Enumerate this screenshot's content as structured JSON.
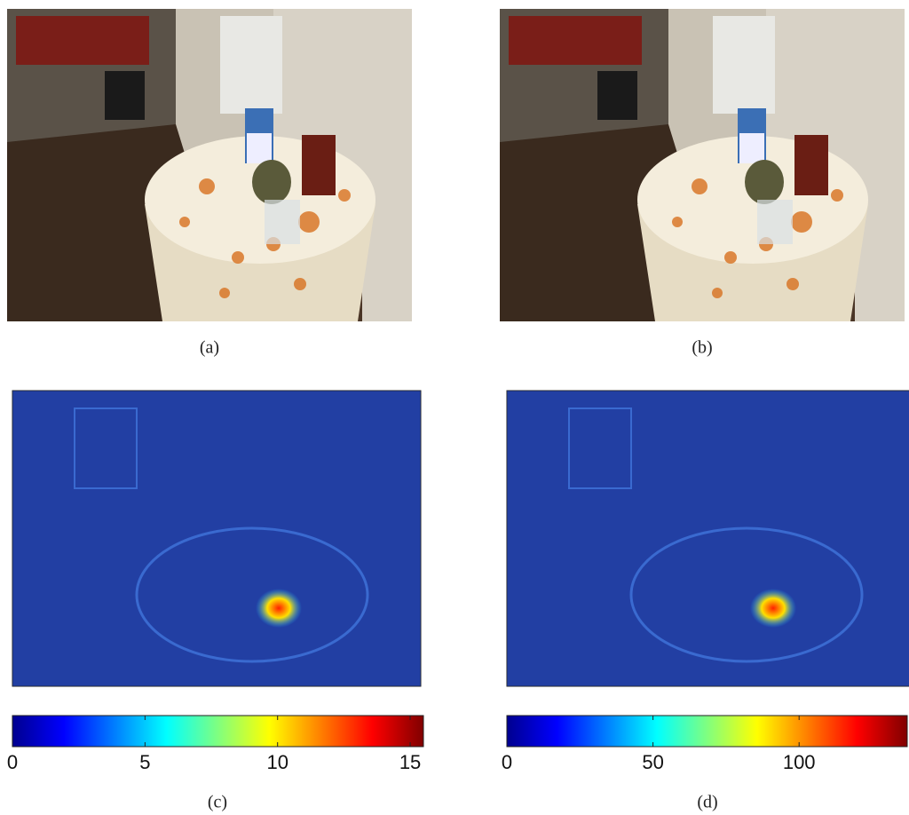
{
  "panels": [
    {
      "label": "(a)"
    },
    {
      "label": "(b)"
    },
    {
      "label": "(c)",
      "colorbar": {
        "lim": [
          0,
          15.5
        ],
        "ticks": [
          0,
          5,
          10,
          15
        ]
      }
    },
    {
      "label": "(d)",
      "colorbar": {
        "lim": [
          0,
          137
        ],
        "ticks": [
          0,
          50,
          100
        ]
      }
    }
  ]
}
